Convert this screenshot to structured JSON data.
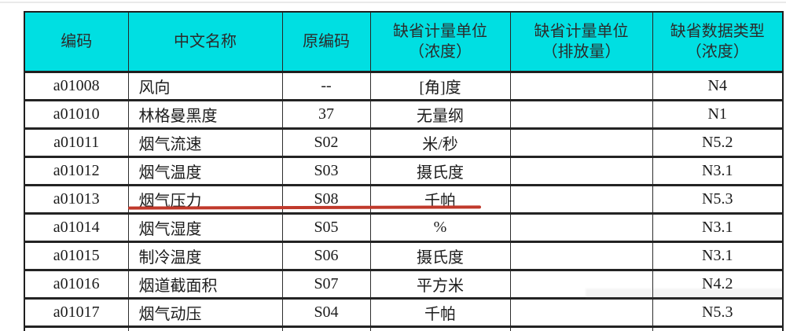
{
  "table": {
    "header_bg_color": "#00dfe2",
    "border_color": "#232323",
    "underline_color": "#c0392b",
    "columns": [
      {
        "line1": "编码",
        "line2": ""
      },
      {
        "line1": "中文名称",
        "line2": ""
      },
      {
        "line1": "原编码",
        "line2": ""
      },
      {
        "line1": "缺省计量单位",
        "line2": "（浓度）"
      },
      {
        "line1": "缺省计量单位",
        "line2": "（排放量）"
      },
      {
        "line1": "缺省数据类型",
        "line2": "（浓度）"
      }
    ],
    "rows": [
      {
        "code": "a01008",
        "name": "风向",
        "orig": "--",
        "unit_conc": "[角]度",
        "unit_emis": "",
        "dtype": "N4",
        "underlined": false
      },
      {
        "code": "a01010",
        "name": "林格曼黑度",
        "orig": "37",
        "unit_conc": "无量纲",
        "unit_emis": "",
        "dtype": "N1",
        "underlined": false
      },
      {
        "code": "a01011",
        "name": "烟气流速",
        "orig": "S02",
        "unit_conc": "米/秒",
        "unit_emis": "",
        "dtype": "N5.2",
        "underlined": false
      },
      {
        "code": "a01012",
        "name": "烟气温度",
        "orig": "S03",
        "unit_conc": "摄氏度",
        "unit_emis": "",
        "dtype": "N3.1",
        "underlined": false
      },
      {
        "code": "a01013",
        "name": "烟气压力",
        "orig": "S08",
        "unit_conc": "千帕",
        "unit_emis": "",
        "dtype": "N5.3",
        "underlined": true
      },
      {
        "code": "a01014",
        "name": "烟气湿度",
        "orig": "S05",
        "unit_conc": "%",
        "unit_emis": "",
        "dtype": "N3.1",
        "underlined": false
      },
      {
        "code": "a01015",
        "name": "制冷温度",
        "orig": "S06",
        "unit_conc": "摄氏度",
        "unit_emis": "",
        "dtype": "N3.1",
        "underlined": false
      },
      {
        "code": "a01016",
        "name": "烟道截面积",
        "orig": "S07",
        "unit_conc": "平方米",
        "unit_emis": "",
        "dtype": "N4.2",
        "underlined": false
      },
      {
        "code": "a01017",
        "name": "烟气动压",
        "orig": "S04",
        "unit_conc": "千帕",
        "unit_emis": "",
        "dtype": "N5.3",
        "underlined": false
      }
    ]
  }
}
